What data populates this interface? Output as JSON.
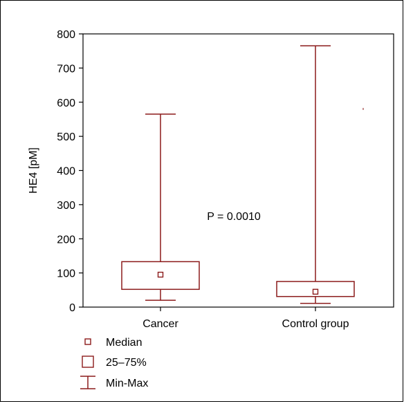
{
  "chart_data": {
    "type": "boxplot",
    "ylabel": "HE4 [pM]",
    "xlabel": "",
    "ylim": [
      0,
      800
    ],
    "yticks": [
      0,
      100,
      200,
      300,
      400,
      500,
      600,
      700,
      800
    ],
    "categories": [
      "Cancer",
      "Control group"
    ],
    "boxes": [
      {
        "category": "Cancer",
        "min": 20,
        "q1": 52,
        "median": 95,
        "q3": 133,
        "max": 565
      },
      {
        "category": "Control group",
        "min": 11,
        "q1": 31,
        "median": 45,
        "q3": 75,
        "max": 765
      }
    ],
    "annotation": "P = 0.0010",
    "legend": {
      "placement": "bottom-left",
      "entries": [
        {
          "symbol": "median-marker",
          "label": "Median"
        },
        {
          "symbol": "box",
          "label": "25–75%"
        },
        {
          "symbol": "whisker",
          "label": "Min-Max"
        }
      ]
    },
    "colors": {
      "series": "#8b1a1a",
      "axes": "#000000"
    },
    "grid": false
  }
}
